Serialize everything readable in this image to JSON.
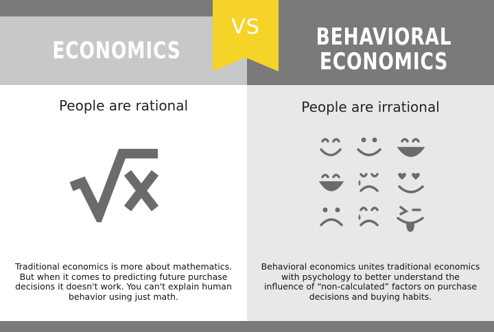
{
  "badge": {
    "label": "VS",
    "color": "#f5d327"
  },
  "left": {
    "title": "ECONOMICS",
    "tagline": "People are rational",
    "icon": "square-root-x-icon",
    "description": "Traditional economics is more about mathematics. But when it comes to predicting future purchase decisions it doesn't work. You can't explain human behavior using just math."
  },
  "right": {
    "title_line1": "BEHAVIORAL",
    "title_line2": "ECONOMICS",
    "tagline": "People are irrational",
    "icon": "emoji-faces-grid-icon",
    "description": "Behavioral economics unites traditional economics with psychology to better understand the influence of “non-calculated” factors on purchase decisions and buying habits."
  },
  "colors": {
    "dark_gray": "#7a7a7a",
    "light_gray": "#c8c8c8",
    "panel_gray": "#e8e8e8",
    "icon_gray": "#6b6b6b"
  }
}
